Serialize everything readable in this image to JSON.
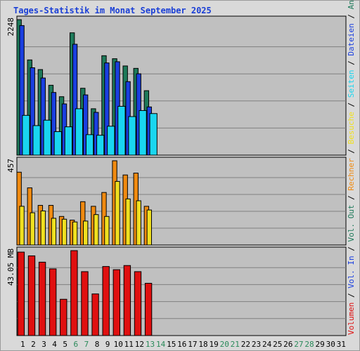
{
  "chart_data": {
    "type": "bar",
    "title": "Tages-Statistik im Monat September 2025",
    "days": [
      "1",
      "2",
      "3",
      "4",
      "5",
      "6",
      "7",
      "8",
      "9",
      "10",
      "11",
      "12",
      "13",
      "14",
      "15",
      "16",
      "17",
      "18",
      "19",
      "20",
      "21",
      "22",
      "23",
      "24",
      "25",
      "26",
      "27",
      "28",
      "29",
      "30",
      "31"
    ],
    "weekend_days": [
      "6",
      "7",
      "13",
      "14",
      "20",
      "21",
      "27",
      "28"
    ],
    "colors": {
      "anfragen": "#1e7a5a",
      "dateien": "#1a3fe0",
      "seiten": "#19d6f0",
      "besuche": "#f0e020",
      "rechner": "#f08a10",
      "volumen": "#e01010",
      "day_normal": "#000000",
      "day_weekend": "#2a8a5a",
      "plot_bg": "#c0c0c0",
      "grid": "#808080"
    },
    "panels": [
      {
        "id": "hits",
        "max_label": "2248",
        "ymax": 2248,
        "series": [
          {
            "name": "Anfragen",
            "color_key": "anfragen",
            "values": [
              2248,
              1580,
              1420,
              1160,
              970,
              2030,
              1110,
              770,
              1650,
              1600,
              1480,
              1440,
              1070
            ]
          },
          {
            "name": "Dateien",
            "color_key": "dateien",
            "values": [
              2150,
              1450,
              1280,
              1040,
              850,
              1840,
              1000,
              710,
              1530,
              1550,
              1220,
              1350,
              800
            ]
          },
          {
            "name": "Seiten",
            "color_key": "seiten",
            "values": [
              660,
              490,
              580,
              390,
              470,
              770,
              340,
              330,
              480,
              810,
              640,
              740,
              690
            ]
          }
        ]
      },
      {
        "id": "visits",
        "max_label": "457",
        "ymax": 457,
        "series": [
          {
            "name": "Rechner",
            "color_key": "rechner",
            "values": [
              395,
              310,
              215,
              215,
              155,
              135,
              235,
              210,
              285,
              457,
              380,
              390,
              210
            ]
          },
          {
            "name": "Besuche",
            "color_key": "besuche",
            "values": [
              210,
              175,
              185,
              145,
              140,
              125,
              130,
              165,
              155,
              345,
              250,
              240,
              190
            ]
          }
        ]
      },
      {
        "id": "volume",
        "max_label": "43.05 MB",
        "ymax": 43.05,
        "series": [
          {
            "name": "Volumen",
            "color_key": "volumen",
            "values": [
              42.3,
              40.4,
              37.2,
              33.8,
              18.4,
              43.05,
              32.4,
              21.1,
              35.0,
              33.4,
              35.5,
              32.4,
              26.5
            ]
          }
        ]
      }
    ],
    "legend": [
      {
        "text": "Volumen",
        "color_key": "volumen"
      },
      {
        "text": " / ",
        "color_key": "day_normal"
      },
      {
        "text": "Vol. In",
        "color_key": "dateien"
      },
      {
        "text": " / ",
        "color_key": "day_normal"
      },
      {
        "text": "Vol. Out",
        "color_key": "anfragen"
      },
      {
        "text": " / ",
        "color_key": "day_normal"
      },
      {
        "text": "Rechner",
        "color_key": "rechner"
      },
      {
        "text": " / ",
        "color_key": "day_normal"
      },
      {
        "text": "Besuche",
        "color_key": "besuche"
      },
      {
        "text": " / ",
        "color_key": "day_normal"
      },
      {
        "text": "Seiten",
        "color_key": "seiten"
      },
      {
        "text": " / ",
        "color_key": "day_normal"
      },
      {
        "text": "Dateien",
        "color_key": "dateien"
      },
      {
        "text": " / ",
        "color_key": "day_normal"
      },
      {
        "text": "Anfragen",
        "color_key": "anfragen"
      }
    ]
  }
}
